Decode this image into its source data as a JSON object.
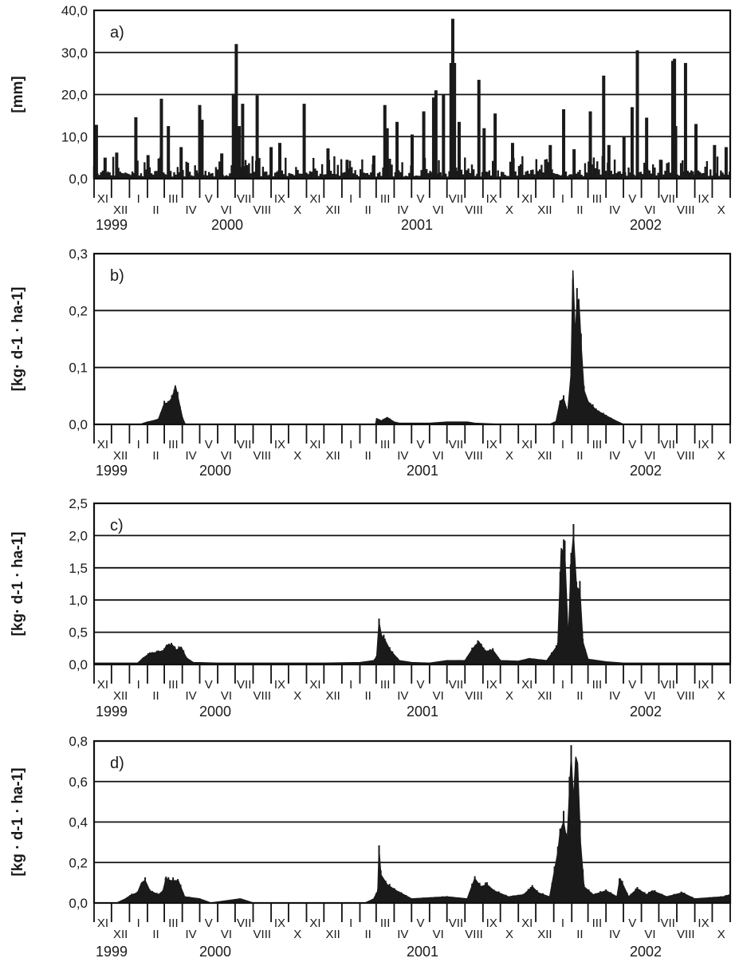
{
  "month_labels": [
    "XI",
    "XII",
    "I",
    "II",
    "III",
    "IV",
    "V",
    "VI",
    "VII",
    "VIII",
    "IX",
    "X",
    "XI",
    "XII",
    "I",
    "II",
    "III",
    "IV",
    "V",
    "VI",
    "VII",
    "VIII",
    "IX",
    "X",
    "XI",
    "XII",
    "I",
    "II",
    "III",
    "IV",
    "V",
    "VI",
    "VII",
    "VIII",
    "IX",
    "X"
  ],
  "year_labels": [
    "1999",
    "2000",
    "2001",
    "2002"
  ],
  "chart_data": [
    {
      "type": "bar",
      "panel_label": "a)",
      "ylabel": "[mm]",
      "ylim": [
        0,
        40
      ],
      "yticks": [
        0,
        10,
        20,
        30,
        40
      ],
      "yticklabels": [
        "0,0",
        "10,0",
        "20,0",
        "30,0",
        "40,0"
      ],
      "x": "daily, 1 Nov 1999 – 31 Oct 2002",
      "grid": true,
      "x_axis": "months XI 1999 – X 2002",
      "peaks": [
        {
          "date": "1999-11-05",
          "value": 12.8
        },
        {
          "date": "1999-11-20",
          "value": 5.0
        },
        {
          "date": "1999-12-10",
          "value": 6.2
        },
        {
          "date": "2000-01-12",
          "value": 14.6
        },
        {
          "date": "2000-02-02",
          "value": 5.6
        },
        {
          "date": "2000-02-25",
          "value": 19.0
        },
        {
          "date": "2000-03-08",
          "value": 12.5
        },
        {
          "date": "2000-03-30",
          "value": 7.5
        },
        {
          "date": "2000-05-01",
          "value": 17.5
        },
        {
          "date": "2000-05-05",
          "value": 14.0
        },
        {
          "date": "2000-06-08",
          "value": 6.0
        },
        {
          "date": "2000-06-28",
          "value": 20.2
        },
        {
          "date": "2000-07-03",
          "value": 32.0
        },
        {
          "date": "2000-07-08",
          "value": 12.5
        },
        {
          "date": "2000-07-14",
          "value": 17.8
        },
        {
          "date": "2000-08-08",
          "value": 19.8
        },
        {
          "date": "2000-09-01",
          "value": 7.5
        },
        {
          "date": "2000-09-16",
          "value": 8.5
        },
        {
          "date": "2000-10-28",
          "value": 17.8
        },
        {
          "date": "2000-12-08",
          "value": 7.2
        },
        {
          "date": "2001-01-10",
          "value": 4.5
        },
        {
          "date": "2001-02-25",
          "value": 5.5
        },
        {
          "date": "2001-03-16",
          "value": 17.5
        },
        {
          "date": "2001-03-20",
          "value": 12.0
        },
        {
          "date": "2001-04-06",
          "value": 13.5
        },
        {
          "date": "2001-05-02",
          "value": 10.5
        },
        {
          "date": "2001-05-22",
          "value": 16.0
        },
        {
          "date": "2001-06-08",
          "value": 19.3
        },
        {
          "date": "2001-06-12",
          "value": 21.0
        },
        {
          "date": "2001-06-25",
          "value": 20.0
        },
        {
          "date": "2001-07-08",
          "value": 27.5
        },
        {
          "date": "2001-07-11",
          "value": 38.0
        },
        {
          "date": "2001-07-14",
          "value": 27.5
        },
        {
          "date": "2001-07-22",
          "value": 13.5
        },
        {
          "date": "2001-08-25",
          "value": 23.5
        },
        {
          "date": "2001-09-03",
          "value": 12.0
        },
        {
          "date": "2001-09-22",
          "value": 15.5
        },
        {
          "date": "2001-10-22",
          "value": 8.5
        },
        {
          "date": "2001-12-26",
          "value": 8.0
        },
        {
          "date": "2002-01-18",
          "value": 16.5
        },
        {
          "date": "2002-02-05",
          "value": 7.0
        },
        {
          "date": "2002-03-05",
          "value": 16.0
        },
        {
          "date": "2002-03-28",
          "value": 24.5
        },
        {
          "date": "2002-04-06",
          "value": 8.0
        },
        {
          "date": "2002-05-02",
          "value": 10.0
        },
        {
          "date": "2002-05-16",
          "value": 17.0
        },
        {
          "date": "2002-05-25",
          "value": 30.5
        },
        {
          "date": "2002-06-10",
          "value": 14.5
        },
        {
          "date": "2002-07-25",
          "value": 28.0
        },
        {
          "date": "2002-07-28",
          "value": 28.5
        },
        {
          "date": "2002-07-30",
          "value": 12.5
        },
        {
          "date": "2002-08-16",
          "value": 27.5
        },
        {
          "date": "2002-09-03",
          "value": 13.0
        },
        {
          "date": "2002-10-05",
          "value": 8.0
        },
        {
          "date": "2002-10-25",
          "value": 7.5
        }
      ],
      "baseline": {
        "range": [
          0.5,
          5.5
        ]
      }
    },
    {
      "type": "area",
      "panel_label": "b)",
      "ylabel": "[kg· d-1 · ha-1]",
      "ylim": [
        0,
        0.3
      ],
      "yticks": [
        0,
        0.1,
        0.2,
        0.3
      ],
      "yticklabels": [
        "0,0",
        "0,1",
        "0,2",
        "0,3"
      ],
      "grid": true,
      "points": [
        [
          "1999-11-01",
          0
        ],
        [
          "2000-01-20",
          0
        ],
        [
          "2000-02-01",
          0.004
        ],
        [
          "2000-02-10",
          0.006
        ],
        [
          "2000-02-20",
          0.009
        ],
        [
          "2000-03-01",
          0.036
        ],
        [
          "2000-03-08",
          0.038
        ],
        [
          "2000-03-14",
          0.046
        ],
        [
          "2000-03-18",
          0.058
        ],
        [
          "2000-03-20",
          0.068
        ],
        [
          "2000-03-24",
          0.05
        ],
        [
          "2000-04-01",
          0.012
        ],
        [
          "2000-04-06",
          0
        ],
        [
          "2001-02-28",
          0
        ],
        [
          "2001-03-02",
          0.01
        ],
        [
          "2001-03-10",
          0.006
        ],
        [
          "2001-03-20",
          0.012
        ],
        [
          "2001-04-01",
          0.004
        ],
        [
          "2001-04-10",
          0.002
        ],
        [
          "2001-06-01",
          0.002
        ],
        [
          "2001-07-01",
          0.004
        ],
        [
          "2001-08-05",
          0.004
        ],
        [
          "2001-08-18",
          0.002
        ],
        [
          "2001-09-30",
          0
        ],
        [
          "2001-12-25",
          0
        ],
        [
          "2002-01-05",
          0.005
        ],
        [
          "2002-01-12",
          0.04
        ],
        [
          "2002-01-18",
          0.045
        ],
        [
          "2002-01-25",
          0.02
        ],
        [
          "2002-01-31",
          0.09
        ],
        [
          "2002-02-03",
          0.27
        ],
        [
          "2002-02-07",
          0.15
        ],
        [
          "2002-02-10",
          0.215
        ],
        [
          "2002-02-13",
          0.22
        ],
        [
          "2002-02-17",
          0.14
        ],
        [
          "2002-02-22",
          0.06
        ],
        [
          "2002-03-01",
          0.04
        ],
        [
          "2002-03-15",
          0.025
        ],
        [
          "2002-04-01",
          0.015
        ],
        [
          "2002-04-20",
          0.005
        ],
        [
          "2002-05-01",
          0
        ],
        [
          "2002-10-31",
          0
        ]
      ]
    },
    {
      "type": "area",
      "panel_label": "c)",
      "ylabel": "[kg· d-1 · ha-1]",
      "ylim": [
        0,
        2.5
      ],
      "yticks": [
        0,
        0.5,
        1.0,
        1.5,
        2.0,
        2.5
      ],
      "yticklabels": [
        "0,0",
        "0,5",
        "1,0",
        "1,5",
        "2,0",
        "2,5"
      ],
      "grid": true,
      "points": [
        [
          "1999-11-01",
          0.02
        ],
        [
          "2000-01-15",
          0.02
        ],
        [
          "2000-01-25",
          0.1
        ],
        [
          "2000-02-05",
          0.17
        ],
        [
          "2000-02-20",
          0.19
        ],
        [
          "2000-03-01",
          0.22
        ],
        [
          "2000-03-05",
          0.3
        ],
        [
          "2000-03-15",
          0.3
        ],
        [
          "2000-03-22",
          0.22
        ],
        [
          "2000-03-30",
          0.27
        ],
        [
          "2000-04-08",
          0.1
        ],
        [
          "2000-04-20",
          0.03
        ],
        [
          "2000-05-31",
          0.02
        ],
        [
          "2000-12-01",
          0.02
        ],
        [
          "2001-02-01",
          0.03
        ],
        [
          "2001-02-25",
          0.06
        ],
        [
          "2001-03-02",
          0.12
        ],
        [
          "2001-03-06",
          0.65
        ],
        [
          "2001-03-10",
          0.45
        ],
        [
          "2001-03-16",
          0.38
        ],
        [
          "2001-03-25",
          0.22
        ],
        [
          "2001-04-10",
          0.06
        ],
        [
          "2001-05-01",
          0.03
        ],
        [
          "2001-06-01",
          0.02
        ],
        [
          "2001-07-01",
          0.06
        ],
        [
          "2001-08-01",
          0.06
        ],
        [
          "2001-08-15",
          0.25
        ],
        [
          "2001-08-25",
          0.35
        ],
        [
          "2001-09-05",
          0.2
        ],
        [
          "2001-09-18",
          0.22
        ],
        [
          "2001-10-01",
          0.06
        ],
        [
          "2001-11-01",
          0.05
        ],
        [
          "2001-11-20",
          0.09
        ],
        [
          "2001-12-20",
          0.06
        ],
        [
          "2002-01-08",
          0.3
        ],
        [
          "2002-01-14",
          1.8
        ],
        [
          "2002-01-20",
          1.7
        ],
        [
          "2002-01-26",
          0.35
        ],
        [
          "2002-01-31",
          1.6
        ],
        [
          "2002-02-04",
          2.0
        ],
        [
          "2002-02-09",
          1.2
        ],
        [
          "2002-02-15",
          1.15
        ],
        [
          "2002-02-20",
          0.35
        ],
        [
          "2002-03-01",
          0.08
        ],
        [
          "2002-04-01",
          0.04
        ],
        [
          "2002-05-01",
          0.02
        ],
        [
          "2002-10-31",
          0.02
        ]
      ]
    },
    {
      "type": "area",
      "panel_label": "d)",
      "ylabel": "[kg · d-1 · ha-1]",
      "ylim": [
        0,
        0.8
      ],
      "yticks": [
        0,
        0.2,
        0.4,
        0.6,
        0.8
      ],
      "yticklabels": [
        "0,0",
        "0,2",
        "0,4",
        "0,6",
        "0,8"
      ],
      "grid": true,
      "points": [
        [
          "1999-11-01",
          0
        ],
        [
          "1999-12-10",
          0
        ],
        [
          "1999-12-25",
          0.02
        ],
        [
          "2000-01-05",
          0.04
        ],
        [
          "2000-01-15",
          0.05
        ],
        [
          "2000-01-22",
          0.1
        ],
        [
          "2000-01-28",
          0.11
        ],
        [
          "2000-02-05",
          0.06
        ],
        [
          "2000-02-20",
          0.04
        ],
        [
          "2000-02-28",
          0.06
        ],
        [
          "2000-03-04",
          0.12
        ],
        [
          "2000-03-12",
          0.11
        ],
        [
          "2000-03-25",
          0.11
        ],
        [
          "2000-04-05",
          0.03
        ],
        [
          "2000-05-01",
          0.02
        ],
        [
          "2000-05-20",
          0
        ],
        [
          "2000-07-10",
          0.02
        ],
        [
          "2000-08-01",
          0
        ],
        [
          "2001-02-10",
          0
        ],
        [
          "2001-02-25",
          0.02
        ],
        [
          "2001-03-04",
          0.06
        ],
        [
          "2001-03-06",
          0.26
        ],
        [
          "2001-03-09",
          0.14
        ],
        [
          "2001-03-20",
          0.09
        ],
        [
          "2001-04-05",
          0.06
        ],
        [
          "2001-05-01",
          0.02
        ],
        [
          "2001-07-01",
          0.03
        ],
        [
          "2001-08-05",
          0.02
        ],
        [
          "2001-08-18",
          0.12
        ],
        [
          "2001-08-28",
          0.08
        ],
        [
          "2001-09-08",
          0.09
        ],
        [
          "2001-09-20",
          0.06
        ],
        [
          "2001-10-15",
          0.03
        ],
        [
          "2001-11-10",
          0.04
        ],
        [
          "2001-11-25",
          0.08
        ],
        [
          "2001-12-05",
          0.05
        ],
        [
          "2001-12-25",
          0.03
        ],
        [
          "2002-01-08",
          0.25
        ],
        [
          "2002-01-12",
          0.35
        ],
        [
          "2002-01-18",
          0.4
        ],
        [
          "2002-01-24",
          0.3
        ],
        [
          "2002-01-31",
          0.72
        ],
        [
          "2002-02-04",
          0.5
        ],
        [
          "2002-02-08",
          0.72
        ],
        [
          "2002-02-11",
          0.69
        ],
        [
          "2002-02-16",
          0.3
        ],
        [
          "2002-02-22",
          0.08
        ],
        [
          "2002-03-10",
          0.04
        ],
        [
          "2002-04-01",
          0.06
        ],
        [
          "2002-04-20",
          0.03
        ],
        [
          "2002-04-25",
          0.12
        ],
        [
          "2002-05-10",
          0.03
        ],
        [
          "2002-05-25",
          0.07
        ],
        [
          "2002-06-10",
          0.04
        ],
        [
          "2002-06-20",
          0.06
        ],
        [
          "2002-07-15",
          0.03
        ],
        [
          "2002-08-10",
          0.05
        ],
        [
          "2002-09-01",
          0.02
        ],
        [
          "2002-10-20",
          0.03
        ],
        [
          "2002-10-31",
          0.04
        ]
      ]
    }
  ]
}
